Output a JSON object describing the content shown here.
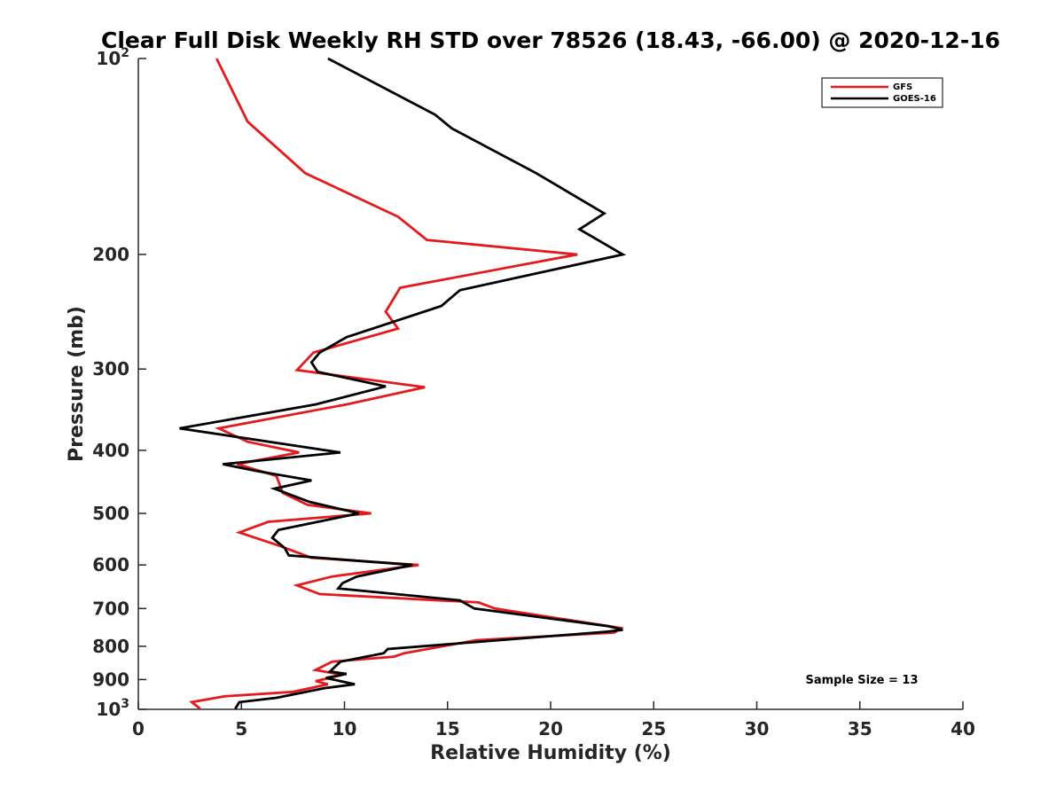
{
  "chart_data": {
    "type": "line",
    "title": "Clear Full Disk Weekly RH STD over 78526 (18.43, -66.00) @ 2020-12-16",
    "xlabel": "Relative Humidity (%)",
    "ylabel": "Pressure (mb)",
    "xlim": [
      0,
      40
    ],
    "ylim": [
      100,
      1000
    ],
    "y_scale": "log",
    "y_reversed": true,
    "x_ticks": [
      "0",
      "5",
      "10",
      "15",
      "20",
      "25",
      "30",
      "35",
      "40"
    ],
    "y_ticks": [
      {
        "value": 100,
        "label": "10",
        "sup": "2"
      },
      {
        "value": 200,
        "label": "200",
        "sup": ""
      },
      {
        "value": 300,
        "label": "300",
        "sup": ""
      },
      {
        "value": 400,
        "label": "400",
        "sup": ""
      },
      {
        "value": 500,
        "label": "500",
        "sup": ""
      },
      {
        "value": 600,
        "label": "600",
        "sup": ""
      },
      {
        "value": 700,
        "label": "700",
        "sup": ""
      },
      {
        "value": 800,
        "label": "800",
        "sup": ""
      },
      {
        "value": 900,
        "label": "900",
        "sup": ""
      },
      {
        "value": 1000,
        "label": "10",
        "sup": "3"
      }
    ],
    "legend_position": "top-right",
    "grid": false,
    "annotation": "Sample Size = 13",
    "series": [
      {
        "name": "GFS",
        "color": "#e41a1c",
        "points": [
          [
            3.8,
            100
          ],
          [
            5.3,
            125
          ],
          [
            8.1,
            150
          ],
          [
            12.6,
            175
          ],
          [
            14.0,
            190
          ],
          [
            21.3,
            200
          ],
          [
            12.7,
            225
          ],
          [
            12.0,
            245
          ],
          [
            12.6,
            260
          ],
          [
            8.5,
            283
          ],
          [
            7.7,
            301
          ],
          [
            13.9,
            320
          ],
          [
            10.1,
            340
          ],
          [
            3.9,
            370
          ],
          [
            5.3,
            388
          ],
          [
            7.8,
            403
          ],
          [
            4.8,
            420
          ],
          [
            6.7,
            438
          ],
          [
            7.0,
            465
          ],
          [
            8.2,
            485
          ],
          [
            11.3,
            500
          ],
          [
            6.3,
            515
          ],
          [
            4.9,
            535
          ],
          [
            6.8,
            560
          ],
          [
            8.4,
            585
          ],
          [
            13.6,
            600
          ],
          [
            9.4,
            625
          ],
          [
            7.7,
            645
          ],
          [
            8.8,
            665
          ],
          [
            16.5,
            685
          ],
          [
            17.3,
            700
          ],
          [
            23.4,
            750
          ],
          [
            23.1,
            762
          ],
          [
            16.4,
            783
          ],
          [
            12.9,
            820
          ],
          [
            12.4,
            830
          ],
          [
            9.4,
            845
          ],
          [
            8.6,
            870
          ],
          [
            9.9,
            885
          ],
          [
            8.6,
            905
          ],
          [
            9.2,
            915
          ],
          [
            7.5,
            940
          ],
          [
            4.2,
            955
          ],
          [
            2.6,
            975
          ],
          [
            3.0,
            998
          ]
        ]
      },
      {
        "name": "GOES-16",
        "color": "#000000",
        "points": [
          [
            9.2,
            100
          ],
          [
            14.4,
            122
          ],
          [
            15.2,
            128
          ],
          [
            19.3,
            150
          ],
          [
            22.6,
            173
          ],
          [
            21.4,
            183
          ],
          [
            23.5,
            200
          ],
          [
            15.6,
            227
          ],
          [
            14.7,
            240
          ],
          [
            10.1,
            268
          ],
          [
            8.8,
            283
          ],
          [
            8.4,
            293
          ],
          [
            8.7,
            303
          ],
          [
            12.0,
            319
          ],
          [
            8.6,
            340
          ],
          [
            2.0,
            370
          ],
          [
            9.8,
            403
          ],
          [
            4.1,
            420
          ],
          [
            5.7,
            430
          ],
          [
            8.4,
            445
          ],
          [
            6.6,
            458
          ],
          [
            8.3,
            480
          ],
          [
            10.7,
            500
          ],
          [
            6.8,
            530
          ],
          [
            6.5,
            545
          ],
          [
            7.1,
            565
          ],
          [
            7.3,
            580
          ],
          [
            13.3,
            600
          ],
          [
            10.6,
            625
          ],
          [
            9.9,
            640
          ],
          [
            9.7,
            652
          ],
          [
            15.6,
            680
          ],
          [
            16.3,
            700
          ],
          [
            22.8,
            745
          ],
          [
            23.5,
            755
          ],
          [
            22.7,
            760
          ],
          [
            12.1,
            808
          ],
          [
            11.9,
            820
          ],
          [
            9.8,
            845
          ],
          [
            9.3,
            875
          ],
          [
            10.1,
            882
          ],
          [
            9.1,
            895
          ],
          [
            10.5,
            915
          ],
          [
            9.0,
            928
          ],
          [
            6.7,
            960
          ],
          [
            4.9,
            975
          ],
          [
            4.7,
            998
          ]
        ]
      }
    ]
  }
}
